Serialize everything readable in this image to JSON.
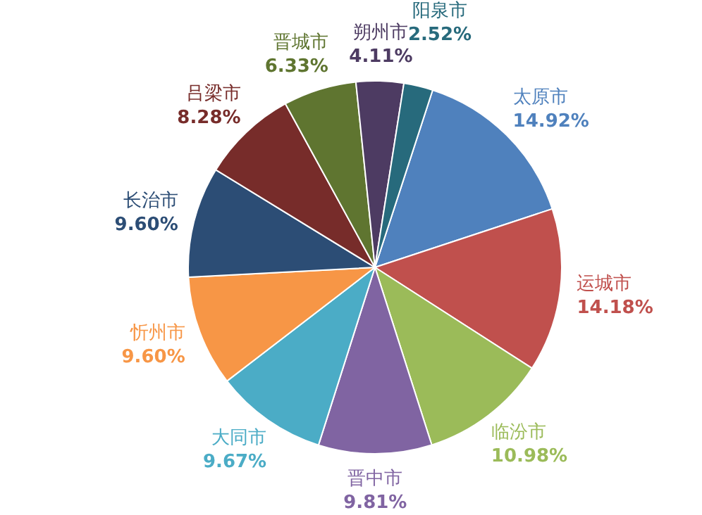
{
  "chart_data": {
    "type": "pie",
    "categories": [
      "太原市",
      "运城市",
      "临汾市",
      "晋中市",
      "大同市",
      "忻州市",
      "长治市",
      "吕梁市",
      "晋城市",
      "朔州市",
      "阳泉市"
    ],
    "values": [
      14.92,
      14.18,
      10.98,
      9.81,
      9.67,
      9.6,
      9.6,
      8.28,
      6.33,
      4.11,
      2.52
    ],
    "value_labels": [
      "14.92%",
      "14.18%",
      "10.98%",
      "9.81%",
      "9.67%",
      "9.60%",
      "9.60%",
      "8.28%",
      "6.33%",
      "4.11%",
      "2.52%"
    ],
    "colors": [
      "#4f81bd",
      "#c0504d",
      "#9bbb59",
      "#8064a2",
      "#4bacc6",
      "#f79646",
      "#2c4d75",
      "#772c2a",
      "#5f7530",
      "#4d3b62",
      "#276a7c"
    ],
    "legend": false
  }
}
